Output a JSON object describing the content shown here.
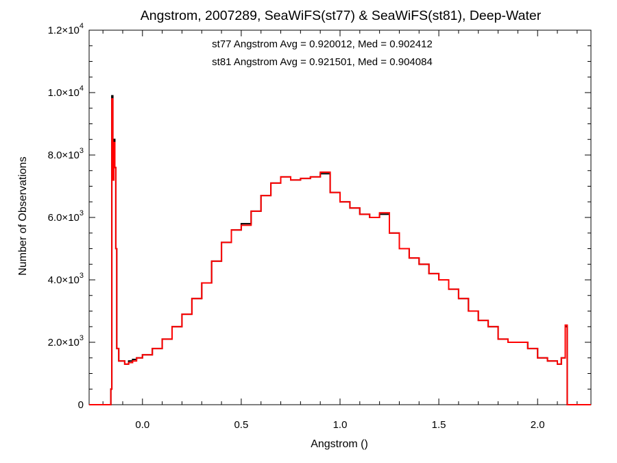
{
  "chart_data": {
    "type": "line",
    "title": "Angstrom, 2007289, SeaWiFS(st77) & SeaWiFS(st81), Deep-Water",
    "xlabel": "Angstrom ()",
    "ylabel": "Number of Observations",
    "xlim": [
      -0.27,
      2.27
    ],
    "ylim": [
      0,
      12000
    ],
    "grid": false,
    "step": true,
    "x_ticks": [
      {
        "value": 0.0,
        "label": "0.0"
      },
      {
        "value": 0.5,
        "label": "0.5"
      },
      {
        "value": 1.0,
        "label": "1.0"
      },
      {
        "value": 1.5,
        "label": "1.5"
      },
      {
        "value": 2.0,
        "label": "2.0"
      }
    ],
    "y_ticks": [
      {
        "value": 0,
        "mant": "0",
        "exp": ""
      },
      {
        "value": 2000,
        "mant": "2.0×10",
        "exp": "3"
      },
      {
        "value": 4000,
        "mant": "4.0×10",
        "exp": "3"
      },
      {
        "value": 6000,
        "mant": "6.0×10",
        "exp": "3"
      },
      {
        "value": 8000,
        "mant": "8.0×10",
        "exp": "3"
      },
      {
        "value": 10000,
        "mant": "1.0×10",
        "exp": "4"
      },
      {
        "value": 12000,
        "mant": "1.2×10",
        "exp": "4"
      }
    ],
    "annotations": [
      {
        "text": "st77 Angstrom Avg = 0.920012, Med = 0.902412",
        "color": "#000000"
      },
      {
        "text": "st81 Angstrom Avg = 0.921501, Med = 0.904084",
        "color": "#ff0000"
      }
    ],
    "series": [
      {
        "color": "#000000",
        "x": [
          -0.27,
          -0.16,
          -0.155,
          -0.15,
          -0.145,
          -0.14,
          -0.135,
          -0.13,
          -0.12,
          -0.11,
          -0.09,
          -0.07,
          -0.05,
          -0.03,
          0.0,
          0.05,
          0.1,
          0.15,
          0.2,
          0.25,
          0.3,
          0.35,
          0.4,
          0.45,
          0.5,
          0.55,
          0.6,
          0.65,
          0.7,
          0.75,
          0.8,
          0.85,
          0.9,
          0.95,
          1.0,
          1.05,
          1.1,
          1.15,
          1.2,
          1.25,
          1.3,
          1.35,
          1.4,
          1.45,
          1.5,
          1.55,
          1.6,
          1.65,
          1.7,
          1.75,
          1.8,
          1.85,
          1.9,
          1.95,
          2.0,
          2.05,
          2.1,
          2.12,
          2.14,
          2.15,
          2.27
        ],
        "y": [
          0,
          500,
          9900,
          7200,
          8500,
          7600,
          5000,
          1800,
          1400,
          1400,
          1300,
          1400,
          1450,
          1500,
          1600,
          1800,
          2100,
          2500,
          2900,
          3400,
          3900,
          4600,
          5200,
          5600,
          5800,
          6200,
          6700,
          7100,
          7300,
          7200,
          7250,
          7300,
          7400,
          6800,
          6500,
          6300,
          6100,
          6000,
          6100,
          5500,
          5000,
          4700,
          4500,
          4200,
          4000,
          3700,
          3400,
          3000,
          2700,
          2500,
          2100,
          2000,
          2000,
          1800,
          1500,
          1400,
          1300,
          1500,
          2500,
          0,
          0
        ]
      },
      {
        "color": "#ff0000",
        "x": [
          -0.27,
          -0.16,
          -0.155,
          -0.15,
          -0.145,
          -0.14,
          -0.135,
          -0.13,
          -0.12,
          -0.11,
          -0.09,
          -0.07,
          -0.05,
          -0.03,
          0.0,
          0.05,
          0.1,
          0.15,
          0.2,
          0.25,
          0.3,
          0.35,
          0.4,
          0.45,
          0.5,
          0.55,
          0.6,
          0.65,
          0.7,
          0.75,
          0.8,
          0.85,
          0.9,
          0.95,
          1.0,
          1.05,
          1.1,
          1.15,
          1.2,
          1.25,
          1.3,
          1.35,
          1.4,
          1.45,
          1.5,
          1.55,
          1.6,
          1.65,
          1.7,
          1.75,
          1.8,
          1.85,
          1.9,
          1.95,
          2.0,
          2.05,
          2.1,
          2.12,
          2.14,
          2.15,
          2.27
        ],
        "y": [
          0,
          500,
          9800,
          7200,
          8400,
          7600,
          5000,
          1800,
          1400,
          1400,
          1300,
          1350,
          1400,
          1500,
          1600,
          1800,
          2100,
          2500,
          2900,
          3400,
          3900,
          4600,
          5200,
          5600,
          5750,
          6200,
          6700,
          7100,
          7300,
          7200,
          7250,
          7300,
          7450,
          6800,
          6500,
          6300,
          6100,
          6000,
          6150,
          5500,
          5000,
          4700,
          4500,
          4200,
          4000,
          3700,
          3400,
          3000,
          2700,
          2500,
          2100,
          2000,
          2000,
          1800,
          1500,
          1400,
          1300,
          1500,
          2550,
          0,
          0
        ]
      }
    ]
  }
}
